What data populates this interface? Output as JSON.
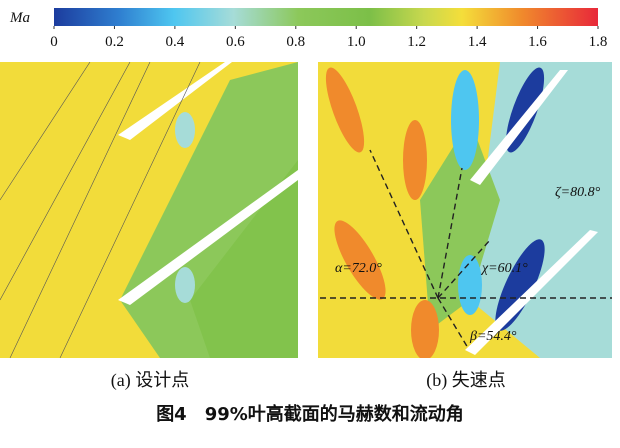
{
  "colorbar": {
    "label": "Ma",
    "range": [
      0,
      1.8
    ],
    "ticks": [
      0,
      0.2,
      0.4,
      0.6,
      0.8,
      {
        "value": 1,
        "label": "1.0"
      },
      1.2,
      1.4,
      1.6,
      1.8
    ]
  },
  "panels": [
    {
      "caption": "(a) 设计点"
    },
    {
      "caption": "(b) 失速点",
      "annotations": [
        "α=72.0°",
        "χ=60.1°",
        "ζ=80.8°",
        "β=54.4°"
      ]
    }
  ],
  "figure_caption": "图4　99%叶高截面的马赫数和流动角"
}
